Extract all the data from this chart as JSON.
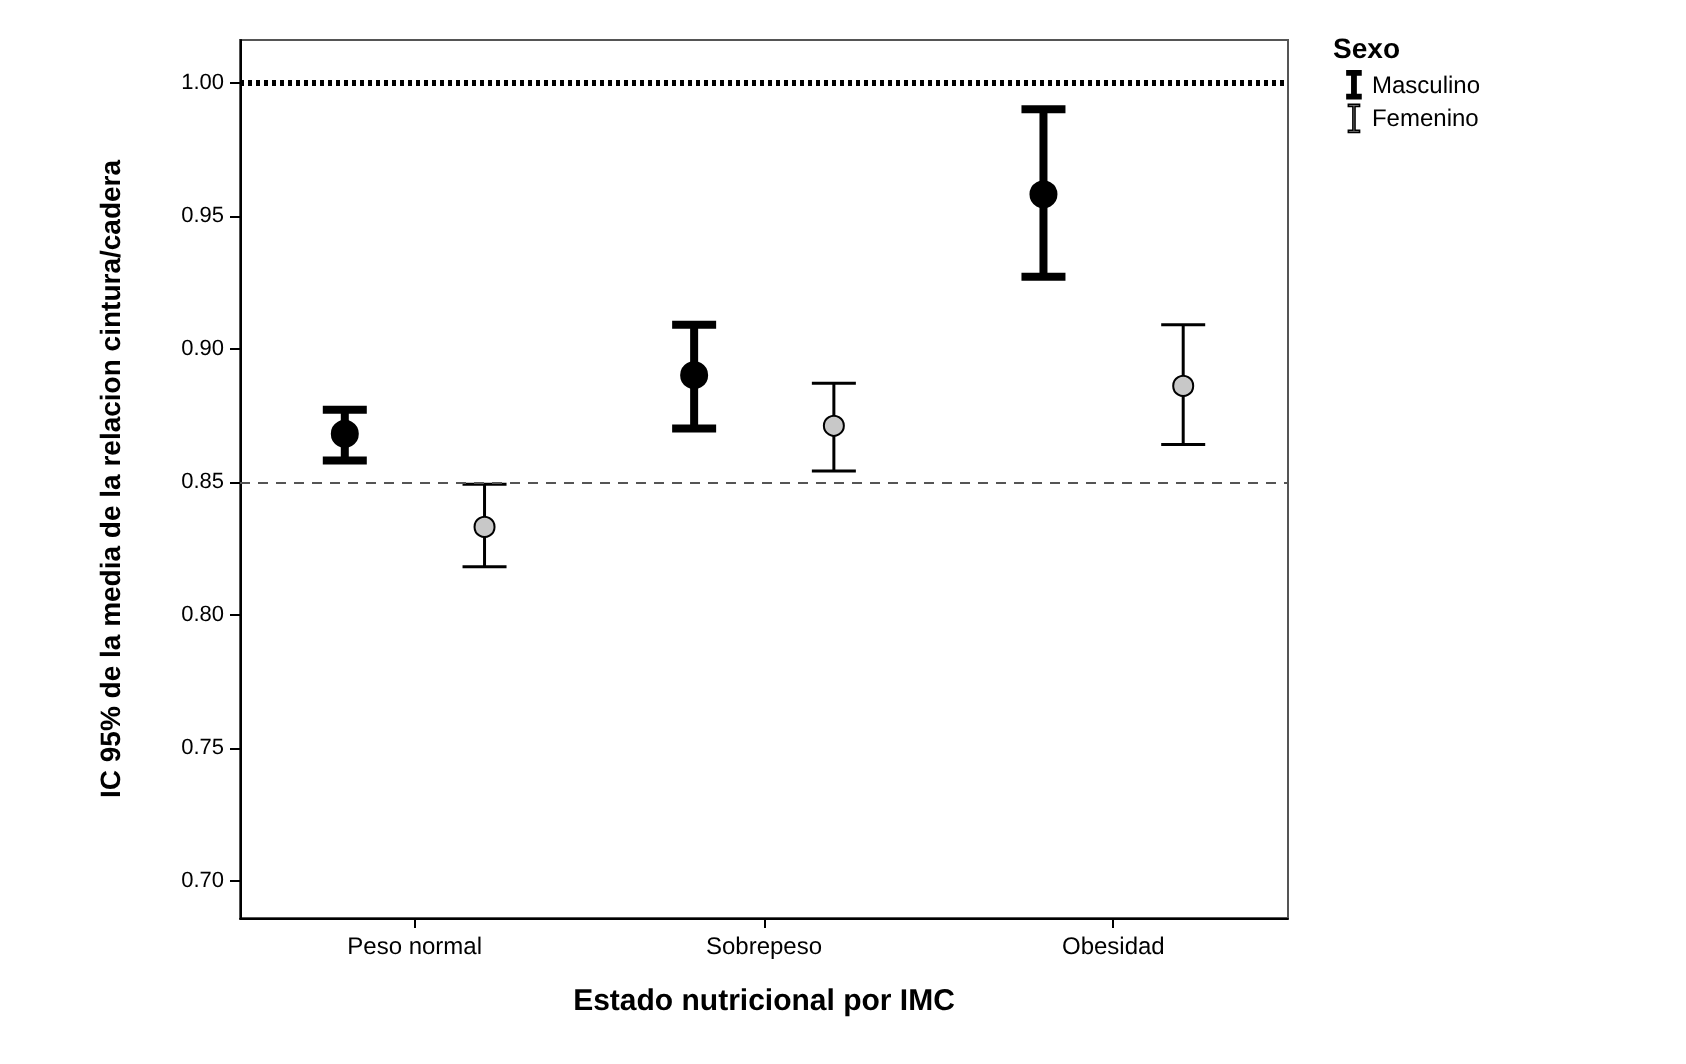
{
  "chart_data": {
    "type": "scatter",
    "xlabel": "Estado nutricional por IMC",
    "ylabel": "IC 95% de la media de la relacion cintura/cadera",
    "legend_title": "Sexo",
    "categories": [
      "Peso normal",
      "Sobrepeso",
      "Obesidad"
    ],
    "series": [
      {
        "name": "Masculino",
        "color": "#000000",
        "values": [
          0.868,
          0.89,
          0.958
        ],
        "errors": [
          [
            0.858,
            0.877
          ],
          [
            0.87,
            0.909
          ],
          [
            0.927,
            0.99
          ]
        ]
      },
      {
        "name": "Femenino",
        "color": "#c8c8c8",
        "values": [
          0.833,
          0.871,
          0.886
        ],
        "errors": [
          [
            0.818,
            0.849
          ],
          [
            0.854,
            0.887
          ],
          [
            0.864,
            0.909
          ]
        ]
      }
    ],
    "ylim": [
      0.686,
      1.016
    ],
    "yticks": [
      {
        "value": 0.7,
        "label": "0.70"
      },
      {
        "value": 0.75,
        "label": "0.75"
      },
      {
        "value": 0.8,
        "label": "0.80"
      },
      {
        "value": 0.85,
        "label": "0.85"
      },
      {
        "value": 0.9,
        "label": "0.90"
      },
      {
        "value": 0.95,
        "label": "0.95"
      },
      {
        "value": 1.0,
        "label": "1.00"
      }
    ],
    "ref_lines": [
      {
        "axis": "y",
        "value": 1.0,
        "line_style": "dotted",
        "color": "#000000"
      },
      {
        "axis": "y",
        "value": 0.85,
        "line_style": "dashed",
        "color": "#555555"
      }
    ],
    "grid": false,
    "legend": "top right",
    "marker": "circle"
  }
}
